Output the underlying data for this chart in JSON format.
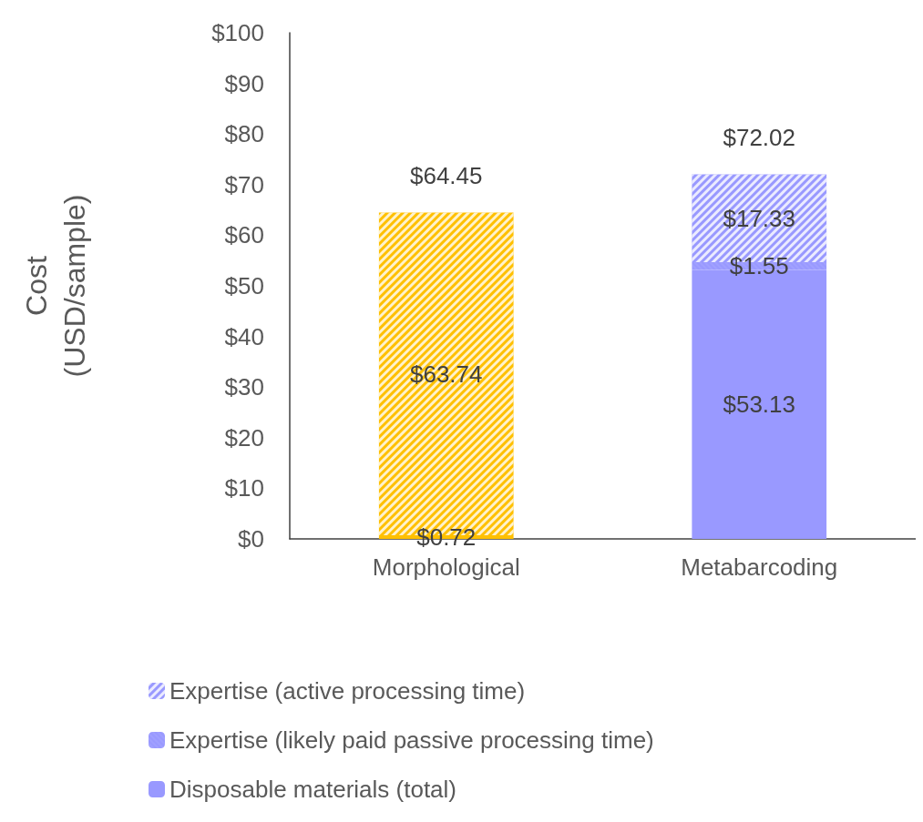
{
  "chart_data": {
    "type": "bar",
    "stacked": true,
    "ylabel": "Cost (USD/sample)",
    "categories": [
      "Morphological",
      "Metabarcoding"
    ],
    "series": [
      {
        "name": "Disposable materials (total)",
        "color": "#9999ff",
        "colors": [
          "#ffc000",
          "#9999ff"
        ],
        "values": [
          0.72,
          53.13
        ],
        "value_labels": [
          "$0.72",
          "$53.13"
        ]
      },
      {
        "name": "Expertise (likely paid passive processing time)",
        "color": "#9999ff",
        "colors": [
          "#ffc000",
          "#9999ff"
        ],
        "values": [
          0,
          1.55
        ],
        "value_labels": [
          null,
          "$1.55"
        ]
      },
      {
        "name": "Expertise (active processing time)",
        "color": "#9999ff",
        "colors": [
          "#ffc000",
          "#9999ff"
        ],
        "values": [
          63.74,
          17.33
        ],
        "value_labels": [
          "$63.74",
          "$17.33"
        ]
      }
    ],
    "totals": [
      "$64.45",
      "$72.02"
    ],
    "ylim": [
      0,
      100
    ],
    "yticks": [
      {
        "value": 0,
        "label": "$0"
      },
      {
        "value": 10,
        "label": "$10"
      },
      {
        "value": 20,
        "label": "$20"
      },
      {
        "value": 30,
        "label": "$30"
      },
      {
        "value": 40,
        "label": "$40"
      },
      {
        "value": 50,
        "label": "$50"
      },
      {
        "value": 60,
        "label": "$60"
      },
      {
        "value": 70,
        "label": "$70"
      },
      {
        "value": 80,
        "label": "$80"
      },
      {
        "value": 90,
        "label": "$90"
      },
      {
        "value": 100,
        "label": "$100"
      }
    ],
    "grid": false,
    "legend": "bottom left"
  }
}
